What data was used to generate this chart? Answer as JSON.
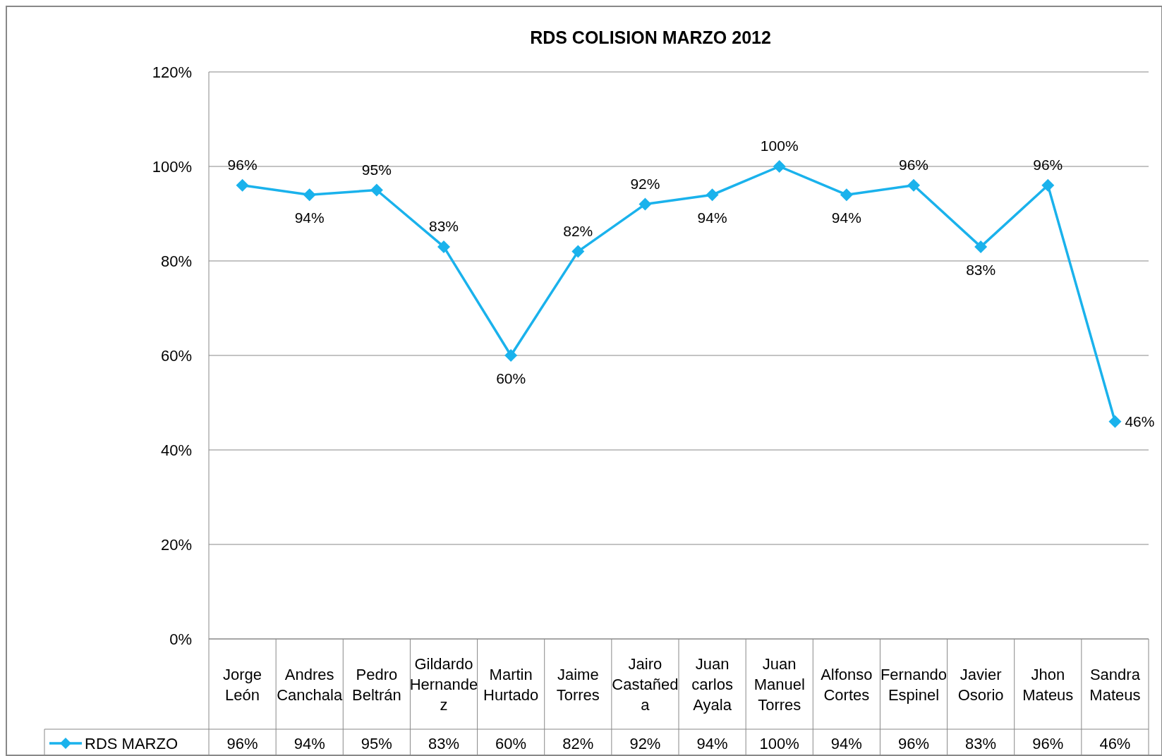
{
  "chart_data": {
    "type": "line",
    "title": "RDS COLISION MARZO 2012",
    "categories": [
      "Jorge León",
      "Andres Canchala",
      "Pedro Beltrán",
      "Gildardo Hernandez",
      "Martin Hurtado",
      "Jaime Torres",
      "Jairo Castañeda",
      "Juan carlos Ayala",
      "Juan Manuel Torres",
      "Alfonso Cortes",
      "Fernando Espinel",
      "Javier Osorio",
      "Jhon Mateus",
      "Sandra Mateus"
    ],
    "series": [
      {
        "name": "RDS  MARZO",
        "color": "#1ab2ec",
        "values": [
          96,
          94,
          95,
          83,
          60,
          82,
          92,
          94,
          100,
          94,
          96,
          83,
          96,
          46
        ],
        "value_labels": [
          "96%",
          "94%",
          "95%",
          "83%",
          "60%",
          "82%",
          "92%",
          "94%",
          "100%",
          "94%",
          "96%",
          "83%",
          "96%",
          "46%"
        ]
      }
    ],
    "ylim": [
      0,
      120
    ],
    "yticks": [
      {
        "value": 0,
        "label": "0%"
      },
      {
        "value": 20,
        "label": "20%"
      },
      {
        "value": 40,
        "label": "40%"
      },
      {
        "value": 60,
        "label": "60%"
      },
      {
        "value": 80,
        "label": "80%"
      },
      {
        "value": 100,
        "label": "100%"
      },
      {
        "value": 120,
        "label": "120%"
      }
    ],
    "grid": "y",
    "marker": "diamond",
    "legend": "bottom",
    "data_labels": true
  }
}
